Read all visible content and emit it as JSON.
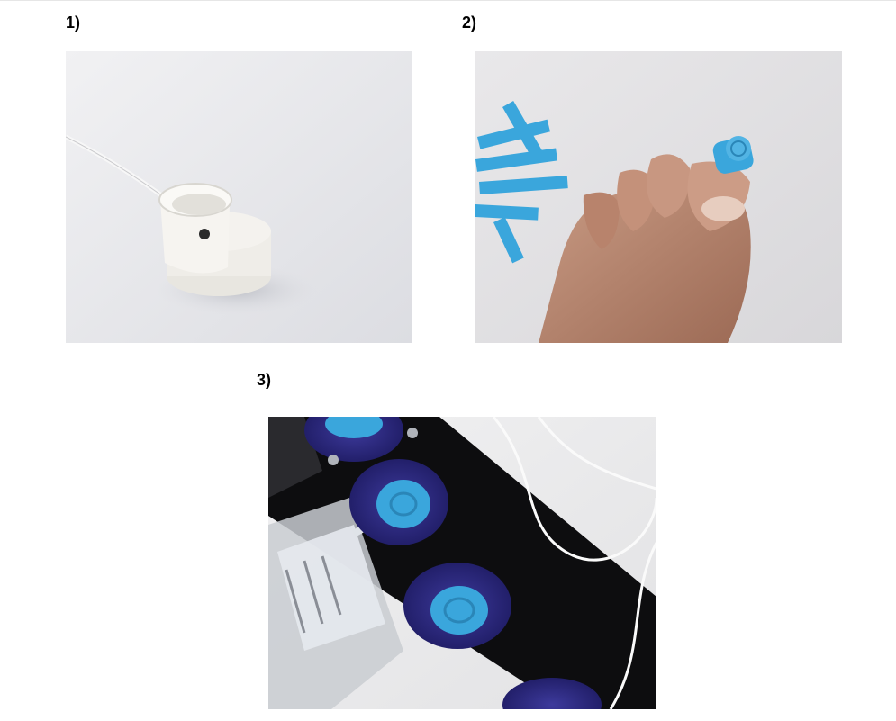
{
  "panels": [
    {
      "label": "1)",
      "icon": "sensor-cap-photo"
    },
    {
      "label": "2)",
      "icon": "rolled-foam-photo"
    },
    {
      "label": "3)",
      "icon": "wells-setup-photo"
    }
  ],
  "colors": {
    "foam_blue": "#3aa6dc",
    "well_purple": "#2e2a86",
    "background_white": "#ffffff"
  }
}
